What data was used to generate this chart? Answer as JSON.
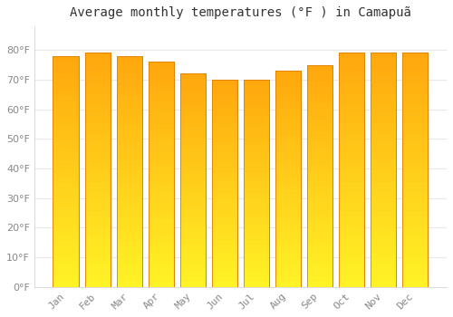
{
  "title": "Average monthly temperatures (°F ) in Camapuã",
  "months": [
    "Jan",
    "Feb",
    "Mar",
    "Apr",
    "May",
    "Jun",
    "Jul",
    "Aug",
    "Sep",
    "Oct",
    "Nov",
    "Dec"
  ],
  "values": [
    78,
    79,
    78,
    76,
    72,
    70,
    70,
    73,
    75,
    79,
    79,
    79
  ],
  "bar_color_top": "#FFD060",
  "bar_color_bottom": "#FFA500",
  "bar_edge_color": "#E08000",
  "background_color": "#FFFFFF",
  "plot_bg_color": "#FFFFFF",
  "grid_color": "#E8E8E8",
  "text_color": "#888888",
  "title_color": "#333333",
  "ylim": [
    0,
    88
  ],
  "yticks": [
    0,
    10,
    20,
    30,
    40,
    50,
    60,
    70,
    80
  ],
  "title_fontsize": 10,
  "tick_fontsize": 8,
  "bar_width": 0.82
}
